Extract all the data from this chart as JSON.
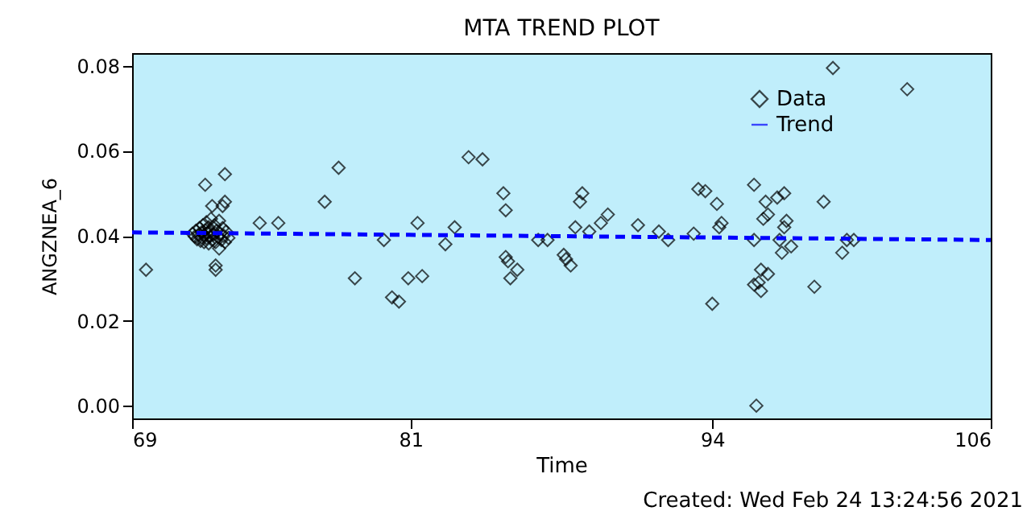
{
  "chart_data": {
    "type": "scatter",
    "title": "MTA TREND PLOT",
    "xlabel": "Time",
    "ylabel": "ANGZNEA_6",
    "annotations": [
      "Created: Wed Feb 24 13:24:56 2021"
    ],
    "xlim": [
      69,
      106
    ],
    "xticks": [
      69,
      81,
      94,
      106
    ],
    "ylim": [
      -0.003,
      0.083
    ],
    "yticks": [
      {
        "value": 0,
        "label": "0.00"
      },
      {
        "value": 0.02,
        "label": "0.02"
      },
      {
        "value": 0.04,
        "label": "0.04"
      },
      {
        "value": 0.06,
        "label": "0.06"
      },
      {
        "value": 0.08,
        "label": "0.08"
      }
    ],
    "grid": false,
    "legend": "top right",
    "series": [
      {
        "name": "Data",
        "color": "#000000",
        "marker": "diamond",
        "x": [
          69.6,
          72.15,
          73.0,
          73.0,
          72.45,
          72.9,
          72.75,
          72.6,
          72.6,
          74.5,
          75.3,
          77.9,
          77.3,
          78.6,
          79.85,
          80.2,
          80.5,
          80.9,
          81.5,
          81.3,
          83.5,
          84.1,
          82.9,
          82.5,
          85.0,
          85.1,
          85.1,
          85.2,
          85.6,
          85.3,
          86.5,
          86.9,
          87.6,
          87.9,
          87.7,
          88.1,
          88.3,
          88.4,
          88.7,
          89.2,
          89.5,
          90.8,
          91.7,
          92.1,
          93.2,
          93.4,
          93.7,
          94.2,
          94.0,
          94.3,
          99.2,
          102.4,
          94.4,
          95.8,
          96.3,
          96.8,
          97.1,
          96.2,
          96.4,
          95.8,
          97.2,
          97.1,
          96.9,
          97.4,
          97.0,
          98.8,
          96.1,
          96.4,
          95.8,
          96.1,
          96.0,
          98.4,
          99.6,
          99.8,
          100.1,
          95.9,
          71.6,
          71.7,
          71.75,
          71.8,
          71.85,
          71.9,
          71.95,
          72.0,
          72.0,
          72.05,
          72.1,
          72.1,
          72.15,
          72.2,
          72.2,
          72.25,
          72.3,
          72.3,
          72.35,
          72.4,
          72.4,
          72.45,
          72.5,
          72.55,
          72.6,
          72.65,
          72.7,
          72.75,
          72.8,
          72.85,
          72.9,
          72.95,
          73.0,
          73.05,
          73.15
        ],
        "values": [
          0.032,
          0.052,
          0.0545,
          0.048,
          0.047,
          0.047,
          0.037,
          0.033,
          0.032,
          0.043,
          0.043,
          0.056,
          0.048,
          0.03,
          0.039,
          0.0255,
          0.0245,
          0.03,
          0.0305,
          0.043,
          0.0585,
          0.058,
          0.042,
          0.038,
          0.05,
          0.046,
          0.035,
          0.034,
          0.032,
          0.03,
          0.039,
          0.039,
          0.0355,
          0.033,
          0.0345,
          0.042,
          0.048,
          0.05,
          0.041,
          0.043,
          0.045,
          0.0425,
          0.041,
          0.039,
          0.0405,
          0.051,
          0.0505,
          0.0475,
          0.024,
          0.042,
          0.0795,
          0.0745,
          0.043,
          0.052,
          0.048,
          0.049,
          0.05,
          0.044,
          0.045,
          0.039,
          0.0435,
          0.042,
          0.039,
          0.0375,
          0.036,
          0.048,
          0.032,
          0.031,
          0.0285,
          0.027,
          0.029,
          0.028,
          0.036,
          0.039,
          0.039,
          0.0,
          0.0405,
          0.0398,
          0.0412,
          0.0392,
          0.0402,
          0.0418,
          0.0388,
          0.0408,
          0.0396,
          0.0425,
          0.0385,
          0.0402,
          0.0413,
          0.0394,
          0.0432,
          0.0406,
          0.0382,
          0.042,
          0.0398,
          0.041,
          0.044,
          0.039,
          0.0403,
          0.0425,
          0.0385,
          0.0412,
          0.0397,
          0.0435,
          0.0405,
          0.039,
          0.0418,
          0.04,
          0.0385,
          0.041,
          0.0395
        ]
      },
      {
        "name": "Trend",
        "type": "line",
        "color": "#0000ff",
        "line_style": "dashed",
        "x": [
          69,
          106
        ],
        "values": [
          0.0408,
          0.039
        ]
      }
    ]
  }
}
